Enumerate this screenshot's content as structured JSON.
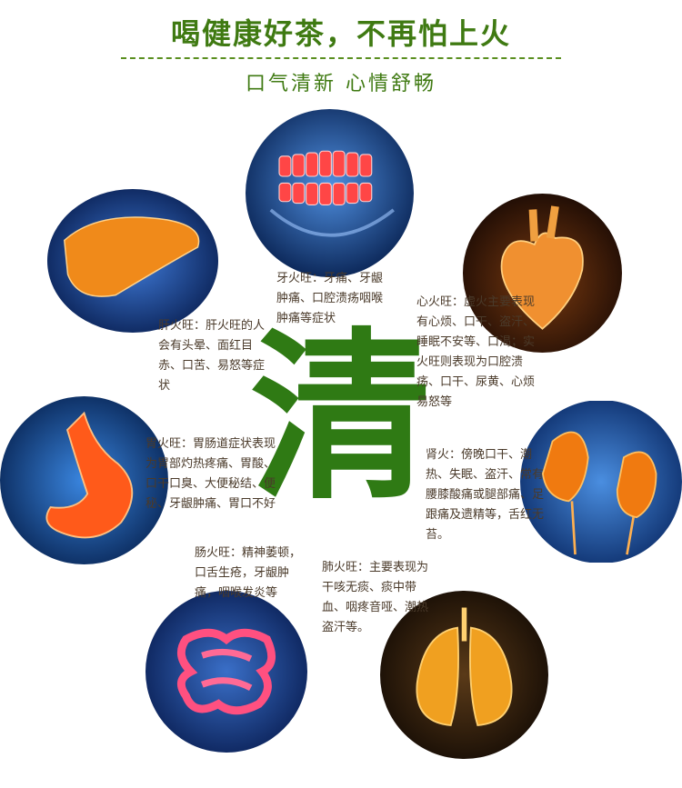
{
  "header": {
    "title": "喝健康好茶，不再怕上火",
    "subtitle": "口气清新  心情舒畅"
  },
  "center_char": "清",
  "sections": {
    "tooth": "牙火旺：牙痛、牙龈肿痛、口腔溃疡咽喉肿痛等症状",
    "liver": "肝火旺：肝火旺的人会有头晕、面红目赤、口苦、易怒等症状",
    "heart": "心火旺：虚火主要表现有心烦、口干、盗汗、睡眠不安等、口渴；实火旺则表现为口腔溃疡、口干、尿黄、心烦易怒等",
    "stomach": "胃火旺：胃肠道症状表现为胃部灼热疼痛、胃酸、口干口臭、大便秘结、便秘、牙龈肿痛、胃口不好",
    "kidney": "肾火：傍晚口干、潮热、失眠、盗汗、常有腰膝酸痛或腿部痛、足跟痛及遗精等，舌红无苔。",
    "intestine": "肠火旺：精神萎顿，口舌生疮，牙龈肿痛，咽喉发炎等",
    "lung": "肺火旺：主要表现为干咳无痰、痰中带血、咽疼音哑、潮热盗汗等。"
  },
  "colors": {
    "brand_green": "#3f7a12",
    "scan_blue": "#0d3a8c",
    "organ_red": "#ff3a1a",
    "organ_orange": "#f07a10",
    "organ_gold": "#f0a020"
  }
}
